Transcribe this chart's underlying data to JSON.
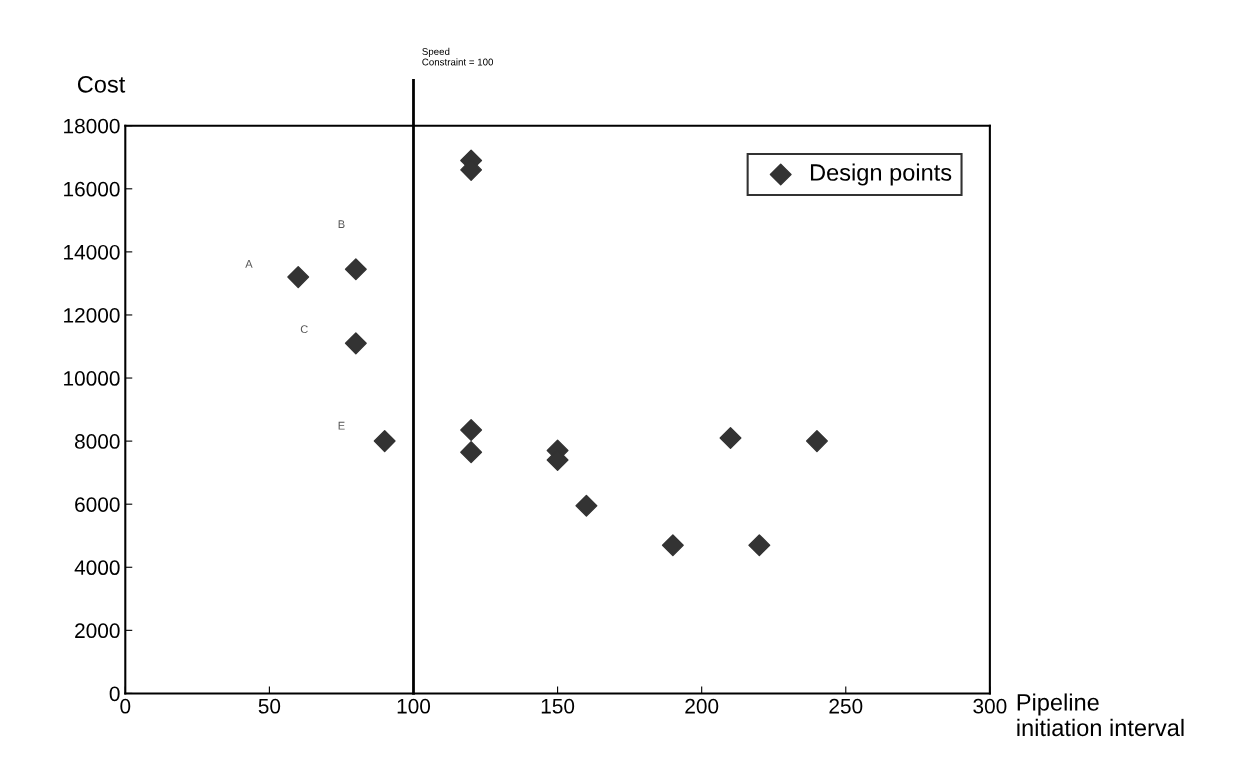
{
  "chart_data": {
    "type": "scatter",
    "xlabel": "Pipeline\ninitiation interval",
    "ylabel": "Cost",
    "series": [
      {
        "name": "Design points",
        "color": "#333333",
        "x": [
          60,
          80,
          80,
          90,
          120,
          120,
          120,
          120,
          150,
          150,
          160,
          190,
          210,
          220,
          240
        ],
        "values": [
          13200,
          13450,
          11100,
          8000,
          16900,
          16600,
          8350,
          7650,
          7700,
          7400,
          5950,
          4700,
          8100,
          4700,
          8000
        ]
      }
    ],
    "annotations": [
      "A",
      "B",
      "C",
      "E"
    ],
    "ref_lines": [
      {
        "axis": "x",
        "value": 100,
        "label": "Speed\nConstraint = 100",
        "color": "#000000"
      }
    ],
    "xlim": [
      0,
      300
    ],
    "xticks": [
      0,
      50,
      100,
      150,
      200,
      250,
      300
    ],
    "ylim": [
      0,
      18000
    ],
    "yticks": [
      0,
      2000,
      4000,
      6000,
      8000,
      10000,
      12000,
      14000,
      16000,
      18000
    ],
    "marker": "diamond",
    "legend": "top right",
    "grid": false
  }
}
